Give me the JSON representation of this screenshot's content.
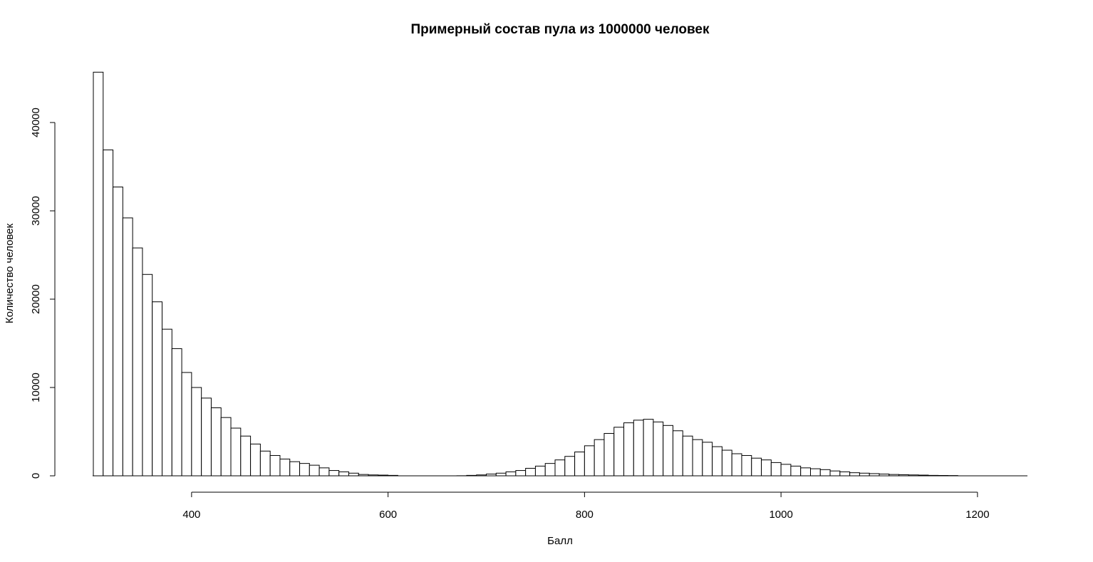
{
  "chart_data": {
    "type": "bar",
    "title": "Примерный состав пула из 1000000 человек",
    "xlabel": "Балл",
    "ylabel": "Количество человек",
    "xlim": [
      300,
      1250
    ],
    "ylim": [
      0,
      46000
    ],
    "bin_width": 10,
    "bins_start": 300,
    "x_ticks": [
      400,
      600,
      800,
      1000,
      1200
    ],
    "y_ticks": [
      0,
      10000,
      20000,
      30000,
      40000
    ],
    "grid": false,
    "values": [
      45700,
      36900,
      32700,
      29200,
      25800,
      22800,
      19700,
      16600,
      14400,
      11700,
      10000,
      8800,
      7700,
      6600,
      5400,
      4500,
      3600,
      2800,
      2300,
      1900,
      1600,
      1400,
      1200,
      900,
      600,
      450,
      300,
      150,
      100,
      80,
      50,
      0,
      0,
      0,
      0,
      0,
      0,
      10,
      50,
      100,
      200,
      300,
      450,
      600,
      850,
      1100,
      1400,
      1800,
      2200,
      2700,
      3400,
      4100,
      4800,
      5500,
      6000,
      6300,
      6400,
      6100,
      5700,
      5100,
      4500,
      4100,
      3800,
      3300,
      2900,
      2500,
      2300,
      2000,
      1800,
      1500,
      1300,
      1100,
      900,
      800,
      700,
      550,
      450,
      350,
      300,
      250,
      200,
      150,
      120,
      100,
      80,
      50,
      40,
      30
    ]
  }
}
